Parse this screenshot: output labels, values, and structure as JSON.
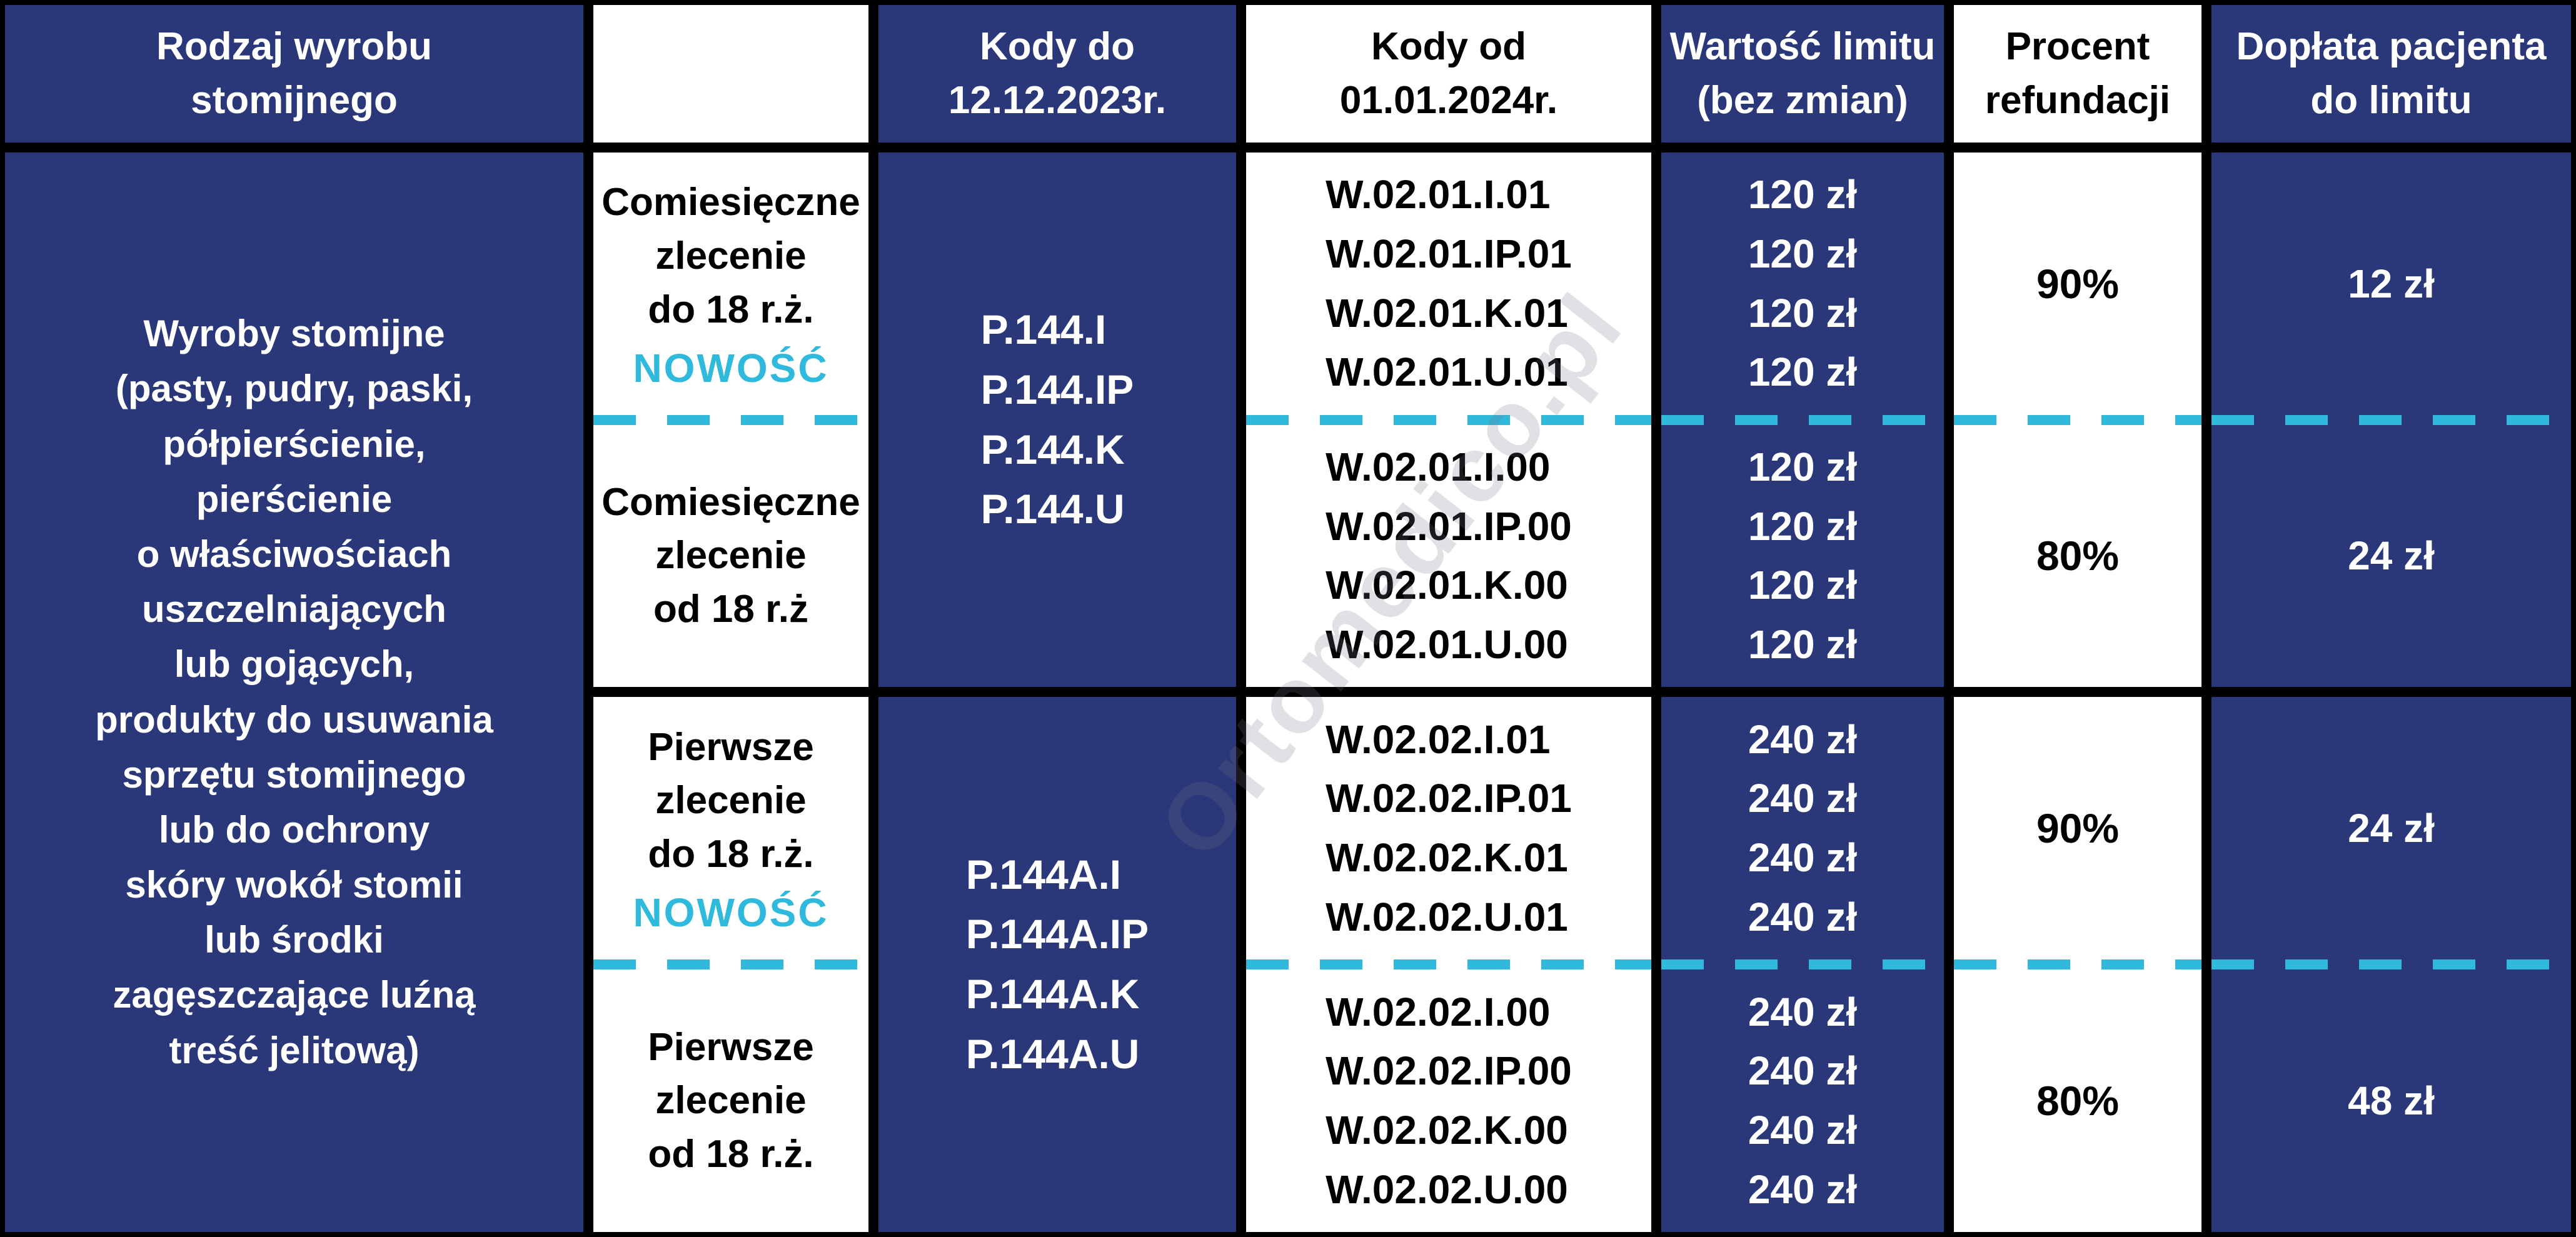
{
  "colors": {
    "navy": "#2a3779",
    "cyan_accent": "#2fb9dc",
    "text_on_navy": "#ffffff",
    "text_on_white": "#000000",
    "gridline": "#000000"
  },
  "watermark": "Ortomedico.pl",
  "header": {
    "product_type": [
      "Rodzaj wyrobu",
      "stomijnego"
    ],
    "order_type": "",
    "codes_until": [
      "Kody do",
      "12.12.2023r."
    ],
    "codes_from": [
      "Kody od",
      "01.01.2024r."
    ],
    "limit_value": [
      "Wartość limitu",
      "(bez zmian)"
    ],
    "refund_percent": [
      "Procent",
      "refundacji"
    ],
    "patient_copay": [
      "Dopłata pacjenta",
      "do limitu"
    ]
  },
  "product": {
    "lines": [
      "Wyroby stomijne",
      "(pasty, pudry, paski,",
      "półpierścienie,",
      "pierścienie",
      "o właściwościach",
      "uszczelniających",
      "lub gojących,",
      "produkty do usuwania",
      "sprzętu stomijnego",
      "lub do ochrony",
      "skóry wokół stomii",
      "lub środki",
      "zagęszczające luźną",
      "treść jelitową)"
    ]
  },
  "sections": [
    {
      "order_top": [
        "Comiesięczne",
        "zlecenie",
        "do 18 r.ż."
      ],
      "order_top_badge": "NOWOŚĆ",
      "order_bottom": [
        "Comiesięczne",
        "zlecenie",
        "od 18 r.ż"
      ],
      "codes_old": [
        "P.144.I",
        "P.144.IP",
        "P.144.K",
        "P.144.U"
      ],
      "codes_new_top": [
        "W.02.01.I.01",
        "W.02.01.IP.01",
        "W.02.01.K.01",
        "W.02.01.U.01"
      ],
      "codes_new_bottom": [
        "W.02.01.I.00",
        "W.02.01.IP.00",
        "W.02.01.K.00",
        "W.02.01.U.00"
      ],
      "limit_top": [
        "120 zł",
        "120 zł",
        "120 zł",
        "120 zł"
      ],
      "limit_bottom": [
        "120 zł",
        "120 zł",
        "120 zł",
        "120 zł"
      ],
      "percent_top": "90%",
      "percent_bottom": "80%",
      "copay_top": "12 zł",
      "copay_bottom": "24 zł"
    },
    {
      "order_top": [
        "Pierwsze",
        "zlecenie",
        "do 18 r.ż."
      ],
      "order_top_badge": "NOWOŚĆ",
      "order_bottom": [
        "Pierwsze",
        "zlecenie",
        "od 18 r.ż."
      ],
      "codes_old": [
        "P.144A.I",
        "P.144A.IP",
        "P.144A.K",
        "P.144A.U"
      ],
      "codes_new_top": [
        "W.02.02.I.01",
        "W.02.02.IP.01",
        "W.02.02.K.01",
        "W.02.02.U.01"
      ],
      "codes_new_bottom": [
        "W.02.02.I.00",
        "W.02.02.IP.00",
        "W.02.02.K.00",
        "W.02.02.U.00"
      ],
      "limit_top": [
        "240 zł",
        "240 zł",
        "240 zł",
        "240 zł"
      ],
      "limit_bottom": [
        "240 zł",
        "240 zł",
        "240 zł",
        "240 zł"
      ],
      "percent_top": "90%",
      "percent_bottom": "80%",
      "copay_top": "24 zł",
      "copay_bottom": "48 zł"
    }
  ]
}
